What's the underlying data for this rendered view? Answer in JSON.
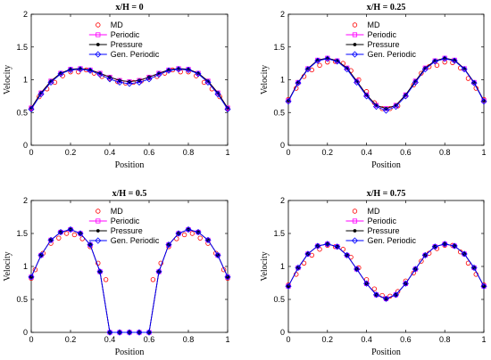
{
  "chart_data": [
    {
      "type": "line",
      "title": "x/H = 0",
      "xlabel": "Position",
      "ylabel": "Velocity",
      "xlim": [
        0,
        1
      ],
      "ylim": [
        0,
        2
      ],
      "xticks": [
        0,
        0.2,
        0.4,
        0.6,
        0.8,
        1
      ],
      "yticks": [
        0,
        0.5,
        1,
        1.5,
        2
      ],
      "legend_position": "top-center",
      "series": [
        {
          "name": "MD",
          "marker": "circle",
          "color": "#ff0000",
          "x": [
            0,
            0.04,
            0.08,
            0.12,
            0.16,
            0.2,
            0.24,
            0.28,
            0.32,
            0.36,
            0.4,
            0.44,
            0.48,
            0.52,
            0.56,
            0.6,
            0.64,
            0.68,
            0.72,
            0.76,
            0.8,
            0.84,
            0.88,
            0.92,
            0.96,
            1
          ],
          "y": [
            0.56,
            0.74,
            0.86,
            0.96,
            1.06,
            1.12,
            1.12,
            1.15,
            1.1,
            1.05,
            1.02,
            0.97,
            0.95,
            0.96,
            0.98,
            1.03,
            1.05,
            1.1,
            1.15,
            1.12,
            1.12,
            1.06,
            0.96,
            0.86,
            0.74,
            0.56
          ]
        },
        {
          "name": "Periodic",
          "marker": "square",
          "color": "#ff00ff",
          "x": [
            0,
            0.05,
            0.1,
            0.15,
            0.2,
            0.25,
            0.3,
            0.35,
            0.4,
            0.45,
            0.5,
            0.55,
            0.6,
            0.65,
            0.7,
            0.75,
            0.8,
            0.85,
            0.9,
            0.95,
            1
          ],
          "y": [
            0.57,
            0.8,
            0.98,
            1.1,
            1.16,
            1.17,
            1.15,
            1.1,
            1.04,
            0.99,
            0.97,
            0.99,
            1.04,
            1.1,
            1.15,
            1.17,
            1.16,
            1.1,
            0.98,
            0.8,
            0.57
          ]
        },
        {
          "name": "Pressure",
          "marker": "star",
          "color": "#000000",
          "x": [
            0,
            0.05,
            0.1,
            0.15,
            0.2,
            0.25,
            0.3,
            0.35,
            0.4,
            0.45,
            0.5,
            0.55,
            0.6,
            0.65,
            0.7,
            0.75,
            0.8,
            0.85,
            0.9,
            0.95,
            1
          ],
          "y": [
            0.57,
            0.8,
            0.98,
            1.1,
            1.16,
            1.17,
            1.15,
            1.1,
            1.04,
            0.99,
            0.97,
            0.99,
            1.04,
            1.1,
            1.15,
            1.17,
            1.16,
            1.1,
            0.98,
            0.8,
            0.57
          ]
        },
        {
          "name": "Gen. Periodic",
          "marker": "diamond",
          "color": "#0000ff",
          "x": [
            0,
            0.05,
            0.1,
            0.15,
            0.2,
            0.25,
            0.3,
            0.35,
            0.4,
            0.45,
            0.5,
            0.55,
            0.6,
            0.65,
            0.7,
            0.75,
            0.8,
            0.85,
            0.9,
            0.95,
            1
          ],
          "y": [
            0.55,
            0.78,
            0.96,
            1.09,
            1.15,
            1.16,
            1.14,
            1.08,
            1.01,
            0.96,
            0.94,
            0.96,
            1.01,
            1.08,
            1.14,
            1.16,
            1.15,
            1.09,
            0.96,
            0.78,
            0.55
          ]
        }
      ]
    },
    {
      "type": "line",
      "title": "x/H = 0.25",
      "xlabel": "Position",
      "ylabel": "Velocity",
      "xlim": [
        0,
        1
      ],
      "ylim": [
        0,
        2
      ],
      "xticks": [
        0,
        0.2,
        0.4,
        0.6,
        0.8,
        1
      ],
      "yticks": [
        0,
        0.5,
        1,
        1.5,
        2
      ],
      "legend_position": "top-center",
      "series": [
        {
          "name": "MD",
          "marker": "circle",
          "color": "#ff0000",
          "x": [
            0,
            0.04,
            0.08,
            0.12,
            0.16,
            0.2,
            0.24,
            0.28,
            0.32,
            0.36,
            0.4,
            0.44,
            0.48,
            0.52,
            0.56,
            0.6,
            0.64,
            0.68,
            0.72,
            0.76,
            0.8,
            0.84,
            0.88,
            0.92,
            0.96,
            1
          ],
          "y": [
            0.7,
            0.87,
            1.05,
            1.15,
            1.22,
            1.27,
            1.28,
            1.25,
            1.14,
            1.0,
            0.82,
            0.65,
            0.56,
            0.56,
            0.6,
            0.75,
            0.92,
            1.1,
            1.2,
            1.22,
            1.27,
            1.26,
            1.18,
            1.02,
            0.87,
            0.7
          ]
        },
        {
          "name": "Periodic",
          "marker": "square",
          "color": "#ff00ff",
          "x": [
            0,
            0.05,
            0.1,
            0.15,
            0.2,
            0.25,
            0.3,
            0.35,
            0.4,
            0.45,
            0.5,
            0.55,
            0.6,
            0.65,
            0.7,
            0.75,
            0.8,
            0.85,
            0.9,
            0.95,
            1
          ],
          "y": [
            0.68,
            0.96,
            1.17,
            1.3,
            1.33,
            1.29,
            1.18,
            0.98,
            0.77,
            0.61,
            0.56,
            0.61,
            0.77,
            0.98,
            1.18,
            1.29,
            1.33,
            1.3,
            1.17,
            0.96,
            0.68
          ]
        },
        {
          "name": "Pressure",
          "marker": "star",
          "color": "#000000",
          "x": [
            0,
            0.05,
            0.1,
            0.15,
            0.2,
            0.25,
            0.3,
            0.35,
            0.4,
            0.45,
            0.5,
            0.55,
            0.6,
            0.65,
            0.7,
            0.75,
            0.8,
            0.85,
            0.9,
            0.95,
            1
          ],
          "y": [
            0.68,
            0.96,
            1.17,
            1.3,
            1.33,
            1.29,
            1.18,
            0.98,
            0.77,
            0.61,
            0.56,
            0.61,
            0.77,
            0.98,
            1.18,
            1.29,
            1.33,
            1.3,
            1.17,
            0.96,
            0.68
          ]
        },
        {
          "name": "Gen. Periodic",
          "marker": "diamond",
          "color": "#0000ff",
          "x": [
            0,
            0.05,
            0.1,
            0.15,
            0.2,
            0.25,
            0.3,
            0.35,
            0.4,
            0.45,
            0.5,
            0.55,
            0.6,
            0.65,
            0.7,
            0.75,
            0.8,
            0.85,
            0.9,
            0.95,
            1
          ],
          "y": [
            0.67,
            0.95,
            1.16,
            1.29,
            1.32,
            1.28,
            1.16,
            0.96,
            0.75,
            0.59,
            0.53,
            0.59,
            0.75,
            0.96,
            1.16,
            1.28,
            1.32,
            1.29,
            1.16,
            0.95,
            0.67
          ]
        }
      ]
    },
    {
      "type": "line",
      "title": "x/H = 0.5",
      "xlabel": "Position",
      "ylabel": "Velocity",
      "xlim": [
        0,
        1
      ],
      "ylim": [
        0,
        2
      ],
      "xticks": [
        0,
        0.2,
        0.4,
        0.6,
        0.8,
        1
      ],
      "yticks": [
        0,
        0.5,
        1,
        1.5,
        2
      ],
      "legend_position": "top-center",
      "series": [
        {
          "name": "MD",
          "marker": "circle",
          "color": "#ff0000",
          "x": [
            0,
            0.02,
            0.06,
            0.1,
            0.14,
            0.18,
            0.22,
            0.26,
            0.3,
            0.34,
            0.38,
            0.62,
            0.66,
            0.7,
            0.74,
            0.78,
            0.82,
            0.86,
            0.9,
            0.94,
            0.98,
            1
          ],
          "y": [
            0.82,
            0.95,
            1.2,
            1.35,
            1.43,
            1.5,
            1.48,
            1.42,
            1.3,
            1.05,
            0.8,
            0.8,
            1.05,
            1.3,
            1.42,
            1.48,
            1.5,
            1.43,
            1.35,
            1.2,
            0.95,
            0.82
          ]
        },
        {
          "name": "Periodic",
          "marker": "square",
          "color": "#ff00ff",
          "x": [
            0,
            0.05,
            0.1,
            0.15,
            0.2,
            0.25,
            0.3,
            0.35,
            0.4,
            0.45,
            0.5,
            0.55,
            0.6,
            0.65,
            0.7,
            0.75,
            0.8,
            0.85,
            0.9,
            0.95,
            1
          ],
          "y": [
            0.84,
            1.17,
            1.4,
            1.52,
            1.56,
            1.5,
            1.33,
            0.92,
            0.0,
            0.0,
            0.0,
            0.0,
            0.0,
            0.92,
            1.33,
            1.5,
            1.56,
            1.52,
            1.4,
            1.17,
            0.84
          ]
        },
        {
          "name": "Pressure",
          "marker": "star",
          "color": "#000000",
          "x": [
            0,
            0.05,
            0.1,
            0.15,
            0.2,
            0.25,
            0.3,
            0.35,
            0.4,
            0.45,
            0.5,
            0.55,
            0.6,
            0.65,
            0.7,
            0.75,
            0.8,
            0.85,
            0.9,
            0.95,
            1
          ],
          "y": [
            0.84,
            1.17,
            1.4,
            1.52,
            1.56,
            1.5,
            1.33,
            0.92,
            0.0,
            0.0,
            0.0,
            0.0,
            0.0,
            0.92,
            1.33,
            1.5,
            1.56,
            1.52,
            1.4,
            1.17,
            0.84
          ]
        },
        {
          "name": "Gen. Periodic",
          "marker": "diamond",
          "color": "#0000ff",
          "x": [
            0,
            0.05,
            0.1,
            0.15,
            0.2,
            0.25,
            0.3,
            0.35,
            0.4,
            0.45,
            0.5,
            0.55,
            0.6,
            0.65,
            0.7,
            0.75,
            0.8,
            0.85,
            0.9,
            0.95,
            1
          ],
          "y": [
            0.84,
            1.17,
            1.4,
            1.52,
            1.56,
            1.5,
            1.33,
            0.92,
            0.0,
            0.0,
            0.0,
            0.0,
            0.0,
            0.92,
            1.33,
            1.5,
            1.56,
            1.52,
            1.4,
            1.17,
            0.84
          ]
        }
      ]
    },
    {
      "type": "line",
      "title": "x/H = 0.75",
      "xlabel": "Position",
      "ylabel": "Velocity",
      "xlim": [
        0,
        1
      ],
      "ylim": [
        0,
        2
      ],
      "xticks": [
        0,
        0.2,
        0.4,
        0.6,
        0.8,
        1
      ],
      "yticks": [
        0,
        0.5,
        1,
        1.5,
        2
      ],
      "legend_position": "top-center",
      "series": [
        {
          "name": "MD",
          "marker": "circle",
          "color": "#ff0000",
          "x": [
            0,
            0.04,
            0.08,
            0.12,
            0.16,
            0.2,
            0.24,
            0.28,
            0.32,
            0.36,
            0.4,
            0.44,
            0.48,
            0.52,
            0.56,
            0.6,
            0.64,
            0.68,
            0.72,
            0.76,
            0.8,
            0.84,
            0.88,
            0.92,
            0.96,
            1
          ],
          "y": [
            0.72,
            0.88,
            1.05,
            1.17,
            1.26,
            1.32,
            1.3,
            1.26,
            1.14,
            0.98,
            0.8,
            0.66,
            0.56,
            0.55,
            0.62,
            0.78,
            0.9,
            1.08,
            1.2,
            1.27,
            1.32,
            1.32,
            1.22,
            1.05,
            0.88,
            0.72
          ]
        },
        {
          "name": "Periodic",
          "marker": "square",
          "color": "#ff00ff",
          "x": [
            0,
            0.05,
            0.1,
            0.15,
            0.2,
            0.25,
            0.3,
            0.35,
            0.4,
            0.45,
            0.5,
            0.55,
            0.6,
            0.65,
            0.7,
            0.75,
            0.8,
            0.85,
            0.9,
            0.95,
            1
          ],
          "y": [
            0.7,
            0.98,
            1.19,
            1.31,
            1.34,
            1.3,
            1.17,
            0.96,
            0.74,
            0.57,
            0.51,
            0.57,
            0.74,
            0.96,
            1.17,
            1.3,
            1.34,
            1.31,
            1.19,
            0.98,
            0.7
          ]
        },
        {
          "name": "Pressure",
          "marker": "star",
          "color": "#000000",
          "x": [
            0,
            0.05,
            0.1,
            0.15,
            0.2,
            0.25,
            0.3,
            0.35,
            0.4,
            0.45,
            0.5,
            0.55,
            0.6,
            0.65,
            0.7,
            0.75,
            0.8,
            0.85,
            0.9,
            0.95,
            1
          ],
          "y": [
            0.7,
            0.98,
            1.19,
            1.31,
            1.34,
            1.3,
            1.17,
            0.96,
            0.74,
            0.57,
            0.51,
            0.57,
            0.74,
            0.96,
            1.17,
            1.3,
            1.34,
            1.31,
            1.19,
            0.98,
            0.7
          ]
        },
        {
          "name": "Gen. Periodic",
          "marker": "diamond",
          "color": "#0000ff",
          "x": [
            0,
            0.05,
            0.1,
            0.15,
            0.2,
            0.25,
            0.3,
            0.35,
            0.4,
            0.45,
            0.5,
            0.55,
            0.6,
            0.65,
            0.7,
            0.75,
            0.8,
            0.85,
            0.9,
            0.95,
            1
          ],
          "y": [
            0.7,
            0.98,
            1.19,
            1.31,
            1.34,
            1.3,
            1.17,
            0.96,
            0.74,
            0.57,
            0.51,
            0.57,
            0.74,
            0.96,
            1.17,
            1.3,
            1.34,
            1.31,
            1.19,
            0.98,
            0.7
          ]
        }
      ]
    }
  ]
}
